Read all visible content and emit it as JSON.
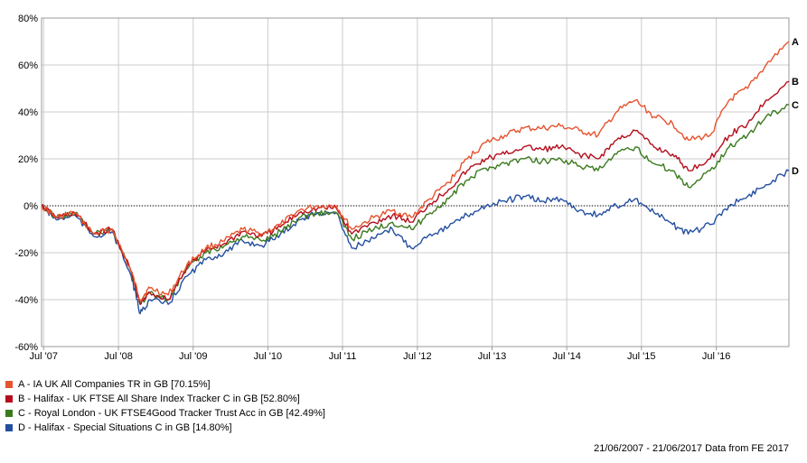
{
  "chart_data": {
    "type": "line",
    "title": "",
    "xlabel": "",
    "ylabel": "",
    "ylim": [
      -60,
      80
    ],
    "yticks": [
      -60,
      -40,
      -20,
      0,
      20,
      40,
      60,
      80
    ],
    "ytick_labels": [
      "-60%",
      "-40%",
      "-20%",
      "0%",
      "20%",
      "40%",
      "60%",
      "80%"
    ],
    "x_range": [
      "2007-06-21",
      "2017-06-21"
    ],
    "xtick_labels": [
      "Jul '07",
      "Jul '08",
      "Jul '09",
      "Jul '10",
      "Jul '11",
      "Jul '12",
      "Jul '13",
      "Jul '14",
      "Jul '15",
      "Jul '16"
    ],
    "xtick_dates": [
      "2007-07-01",
      "2008-07-01",
      "2009-07-01",
      "2010-07-01",
      "2011-07-01",
      "2012-07-01",
      "2013-07-01",
      "2014-07-01",
      "2015-07-01",
      "2016-07-01"
    ],
    "grid": true,
    "zero_line": "dotted",
    "x": [
      "2007-06-21",
      "2007-09-01",
      "2007-12-01",
      "2008-03-01",
      "2008-06-01",
      "2008-09-01",
      "2008-10-15",
      "2008-12-01",
      "2009-03-01",
      "2009-06-01",
      "2009-09-01",
      "2009-12-01",
      "2010-03-01",
      "2010-06-01",
      "2010-09-01",
      "2010-12-01",
      "2011-03-01",
      "2011-06-01",
      "2011-08-15",
      "2011-12-01",
      "2012-03-01",
      "2012-06-01",
      "2012-09-01",
      "2012-12-01",
      "2013-03-01",
      "2013-06-01",
      "2013-09-01",
      "2013-12-01",
      "2014-03-01",
      "2014-06-01",
      "2014-09-01",
      "2014-12-01",
      "2015-03-01",
      "2015-06-01",
      "2015-09-01",
      "2015-12-01",
      "2016-02-15",
      "2016-06-01",
      "2016-09-01",
      "2016-12-01",
      "2017-03-01",
      "2017-06-21"
    ],
    "series": [
      {
        "name": "A - IA UK All Companies TR in GB [70.15%]",
        "letter": "A",
        "color": "#e6532e",
        "values": [
          0,
          -5,
          -3,
          -12,
          -10,
          -28,
          -40,
          -35,
          -38,
          -25,
          -18,
          -15,
          -10,
          -12,
          -8,
          -2,
          0,
          0,
          -10,
          -5,
          -2,
          -5,
          3,
          10,
          20,
          27,
          30,
          33,
          33,
          34,
          32,
          30,
          40,
          45,
          38,
          35,
          28,
          30,
          45,
          50,
          60,
          70
        ]
      },
      {
        "name": "B - Halifax - UK FTSE All Share Index Tracker C in GB [52.80%]",
        "letter": "B",
        "color": "#b50d1c",
        "values": [
          0,
          -5,
          -3,
          -12,
          -10,
          -28,
          -42,
          -37,
          -40,
          -26,
          -19,
          -16,
          -11,
          -13,
          -9,
          -3,
          -1,
          -1,
          -12,
          -7,
          -4,
          -7,
          1,
          7,
          15,
          20,
          22,
          25,
          24,
          25,
          22,
          20,
          28,
          32,
          25,
          22,
          15,
          20,
          30,
          35,
          45,
          53
        ]
      },
      {
        "name": "C - Royal London - UK FTSE4Good Tracker Trust Acc in GB [42.49%]",
        "letter": "C",
        "color": "#3b7a1e",
        "values": [
          0,
          -5,
          -3,
          -12,
          -10,
          -28,
          -42,
          -37,
          -40,
          -27,
          -20,
          -17,
          -13,
          -15,
          -11,
          -5,
          -3,
          -3,
          -14,
          -10,
          -7,
          -10,
          -3,
          3,
          11,
          16,
          18,
          20,
          19,
          20,
          17,
          15,
          22,
          25,
          18,
          15,
          8,
          15,
          25,
          30,
          38,
          43
        ]
      },
      {
        "name": "D - Halifax - Special Situations C in GB [14.80%]",
        "letter": "D",
        "color": "#244fa0",
        "values": [
          0,
          -6,
          -4,
          -13,
          -11,
          -30,
          -46,
          -40,
          -42,
          -30,
          -23,
          -20,
          -15,
          -17,
          -12,
          -6,
          -3,
          -3,
          -18,
          -14,
          -10,
          -18,
          -12,
          -9,
          -4,
          0,
          2,
          4,
          2,
          3,
          -2,
          -4,
          0,
          3,
          -3,
          -8,
          -12,
          -8,
          0,
          4,
          9,
          15
        ]
      }
    ]
  },
  "footer": "21/06/2007 - 21/06/2017 Data from FE 2017"
}
